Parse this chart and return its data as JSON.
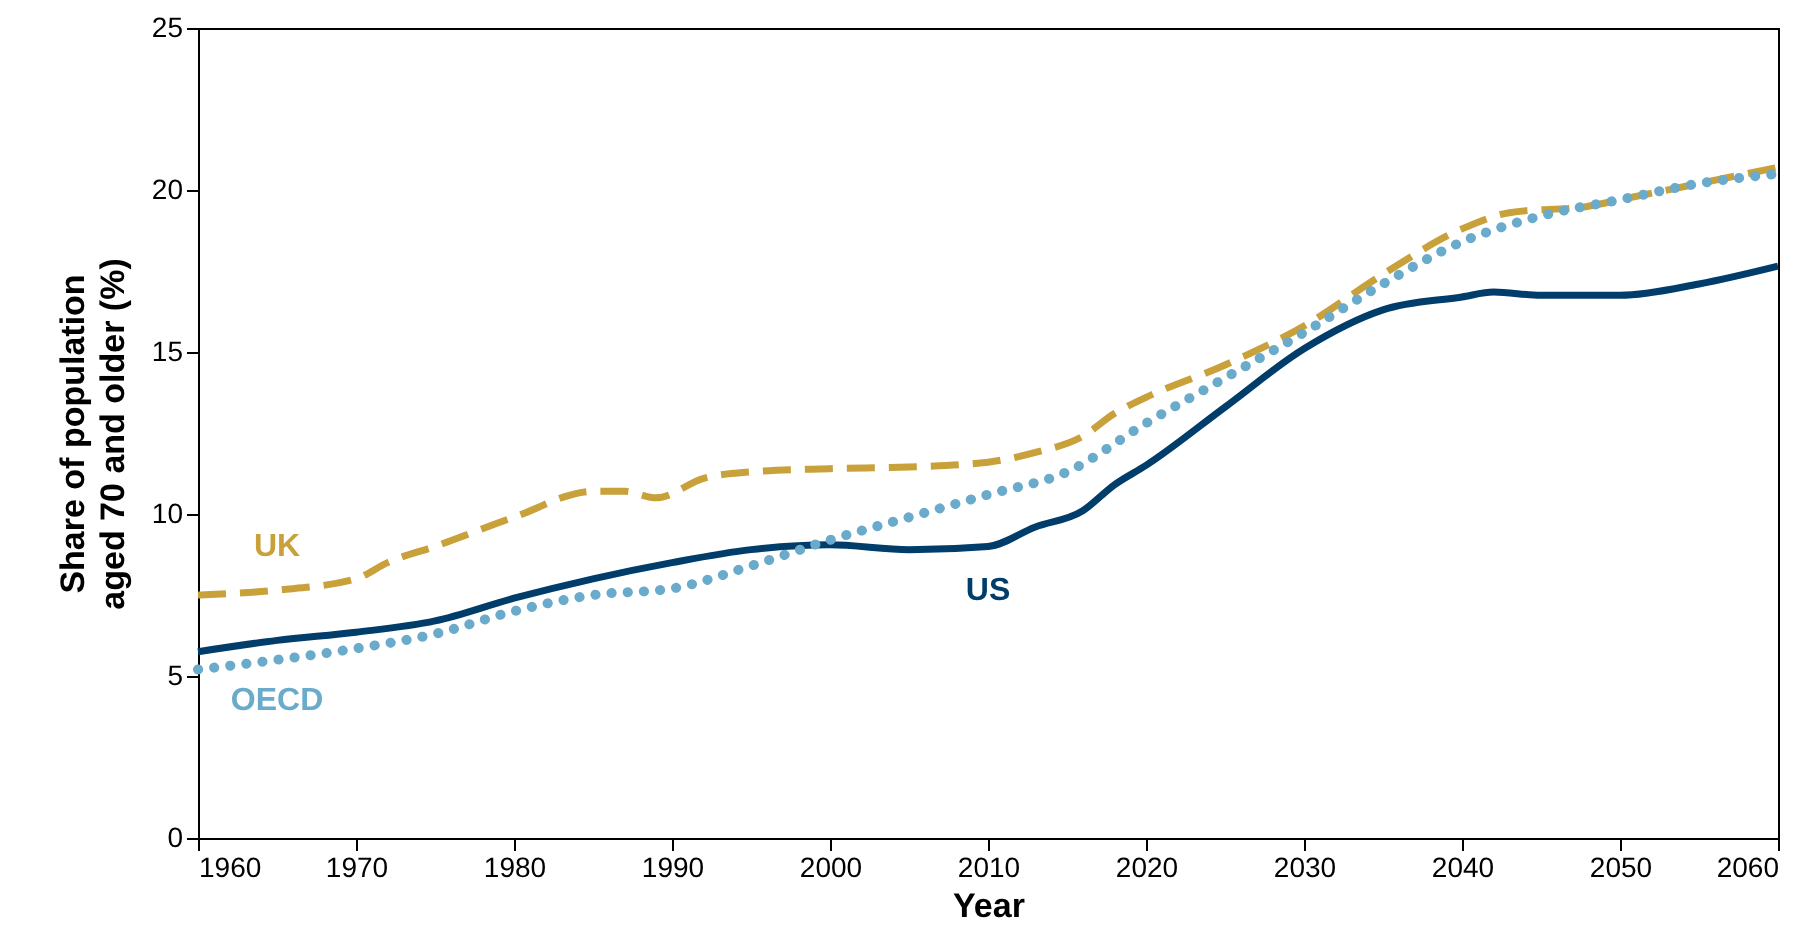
{
  "chart_data": {
    "type": "line",
    "xlabel": "Year",
    "ylabel": "Share of population\naged 70 and older (%)",
    "xlim": [
      1960,
      2060
    ],
    "xticks": [
      1960,
      1970,
      1980,
      1990,
      2000,
      2010,
      2020,
      2030,
      2040,
      2050,
      2060
    ],
    "ylim": [
      0,
      25
    ],
    "yticks": [
      0,
      5,
      10,
      15,
      20,
      25
    ],
    "grid": false,
    "legend": false,
    "marker": "none",
    "series": [
      {
        "name": "UK",
        "color": "#c9a13a",
        "line_style": "dashed",
        "x": [
          1960,
          1965,
          1970,
          1972,
          1975,
          1980,
          1985,
          1987,
          1989,
          1992,
          1995,
          2000,
          2005,
          2010,
          2013,
          2016,
          2018,
          2020,
          2025,
          2030,
          2035,
          2040,
          2043,
          2048,
          2050,
          2055,
          2060
        ],
        "values": [
          7.5,
          7.65,
          8.0,
          8.5,
          9.0,
          9.9,
          10.7,
          10.7,
          10.5,
          11.1,
          11.3,
          11.4,
          11.45,
          11.6,
          11.9,
          12.4,
          13.1,
          13.6,
          14.6,
          15.8,
          17.4,
          18.8,
          19.3,
          19.5,
          19.7,
          20.2,
          20.7
        ]
      },
      {
        "name": "US",
        "color": "#003d6b",
        "line_style": "solid",
        "x": [
          1960,
          1965,
          1970,
          1975,
          1980,
          1985,
          1990,
          1995,
          2000,
          2005,
          2010,
          2013,
          2016,
          2018,
          2020,
          2025,
          2030,
          2035,
          2040,
          2042,
          2045,
          2050,
          2055,
          2060
        ],
        "values": [
          5.75,
          6.1,
          6.35,
          6.7,
          7.4,
          8.0,
          8.5,
          8.9,
          9.05,
          8.9,
          9.0,
          9.6,
          10.1,
          10.9,
          11.5,
          13.3,
          15.1,
          16.3,
          16.7,
          16.85,
          16.75,
          16.75,
          17.1,
          17.65
        ]
      },
      {
        "name": "OECD",
        "color": "#6aaacb",
        "line_style": "dotted",
        "x": [
          1960,
          1965,
          1970,
          1975,
          1980,
          1985,
          1990,
          1995,
          2000,
          2005,
          2010,
          2015,
          2020,
          2025,
          2030,
          2035,
          2040,
          2045,
          2050,
          2055,
          2060
        ],
        "values": [
          5.2,
          5.5,
          5.85,
          6.3,
          7.0,
          7.5,
          7.7,
          8.4,
          9.2,
          9.9,
          10.6,
          11.3,
          12.8,
          14.2,
          15.6,
          17.1,
          18.4,
          19.2,
          19.7,
          20.2,
          20.5
        ]
      }
    ]
  }
}
